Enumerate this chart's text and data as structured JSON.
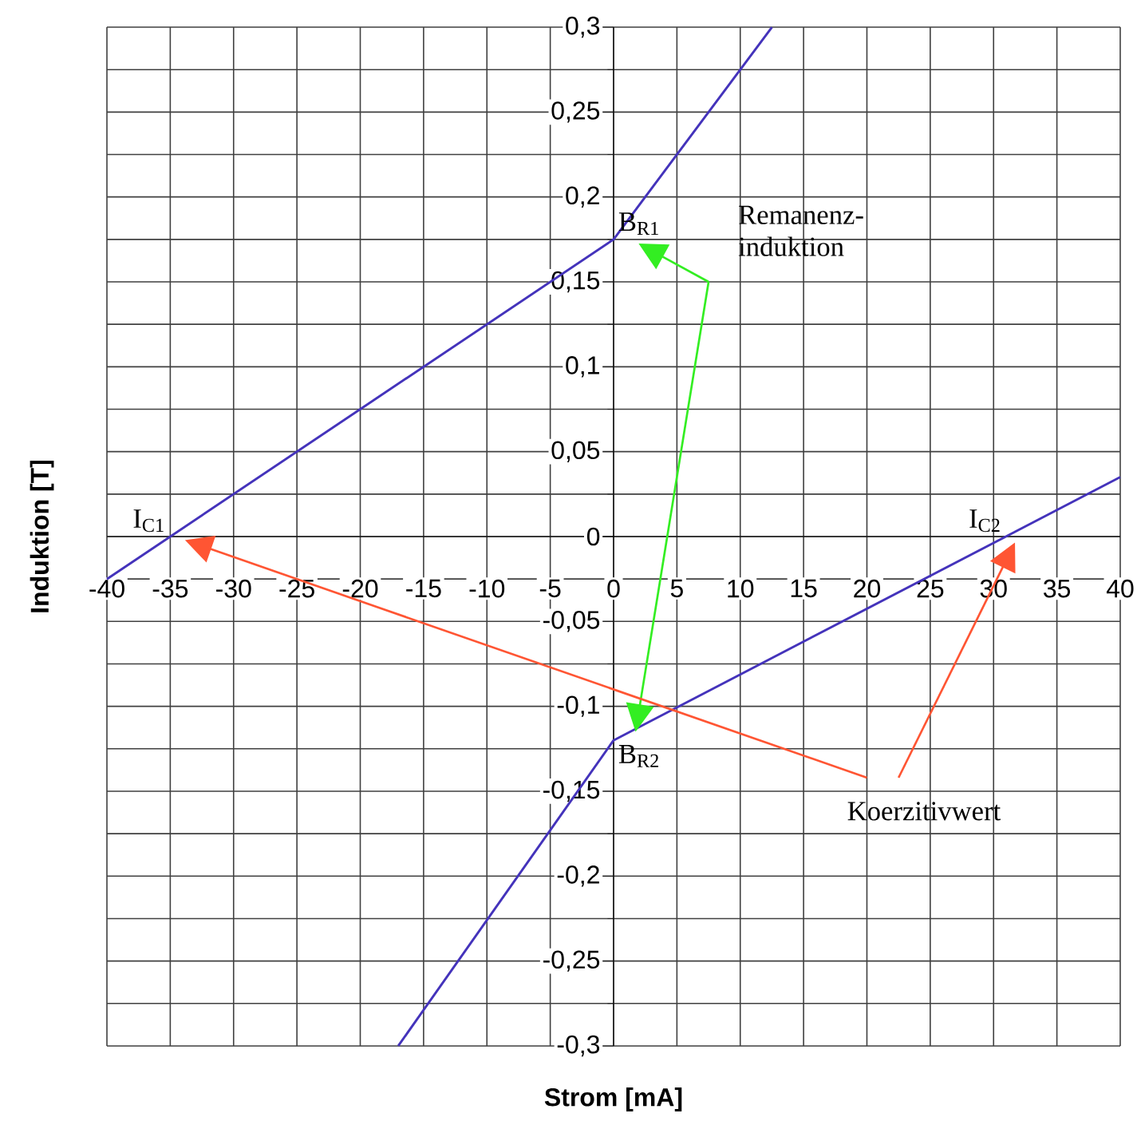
{
  "chart_data": {
    "type": "line",
    "xlabel": "Strom [mA]",
    "ylabel": "Induktion [T]",
    "xlim": [
      -40,
      40
    ],
    "ylim": [
      -0.3,
      0.3
    ],
    "xticks": [
      -40,
      -35,
      -30,
      -25,
      -20,
      -15,
      -10,
      -5,
      0,
      5,
      10,
      15,
      20,
      25,
      30,
      35,
      40
    ],
    "yticks": [
      {
        "value": -0.3,
        "label": "-0,3"
      },
      {
        "value": -0.275,
        "label": null
      },
      {
        "value": -0.25,
        "label": "-0,25"
      },
      {
        "value": -0.225,
        "label": null
      },
      {
        "value": -0.2,
        "label": "-0,2"
      },
      {
        "value": -0.175,
        "label": null
      },
      {
        "value": -0.15,
        "label": "-0,15"
      },
      {
        "value": -0.125,
        "label": null
      },
      {
        "value": -0.1,
        "label": "-0,1"
      },
      {
        "value": -0.075,
        "label": null
      },
      {
        "value": -0.05,
        "label": "-0,05"
      },
      {
        "value": -0.025,
        "label": null
      },
      {
        "value": 0,
        "label": "0"
      },
      {
        "value": 0.025,
        "label": null
      },
      {
        "value": 0.05,
        "label": "0,05"
      },
      {
        "value": 0.075,
        "label": null
      },
      {
        "value": 0.1,
        "label": "0,1"
      },
      {
        "value": 0.125,
        "label": null
      },
      {
        "value": 0.15,
        "label": "0,15"
      },
      {
        "value": 0.175,
        "label": null
      },
      {
        "value": 0.2,
        "label": "0,2"
      },
      {
        "value": 0.225,
        "label": null
      },
      {
        "value": 0.25,
        "label": "0,25"
      },
      {
        "value": 0.275,
        "label": null
      },
      {
        "value": 0.3,
        "label": "0,3"
      }
    ],
    "grid": true,
    "series": [
      {
        "color": "#4433bb",
        "x": [
          -40,
          0,
          12.5
        ],
        "values": [
          -0.025,
          0.175,
          0.3
        ]
      },
      {
        "color": "#4433bb",
        "x": [
          -17,
          0,
          40
        ],
        "values": [
          -0.3,
          -0.12,
          0.035
        ]
      }
    ],
    "annotations": [
      {
        "text": "B$_{R1}$",
        "x": 0,
        "y": 0.175
      },
      {
        "text": "B$_{R2}$",
        "x": 0,
        "y": -0.12
      },
      {
        "text": "I$_{C1}$",
        "x": -35,
        "y": 0
      },
      {
        "text": "I$_{C2}$",
        "x": 31,
        "y": 0
      },
      "Remanenz-induktion",
      "Koerzitivwert"
    ]
  }
}
